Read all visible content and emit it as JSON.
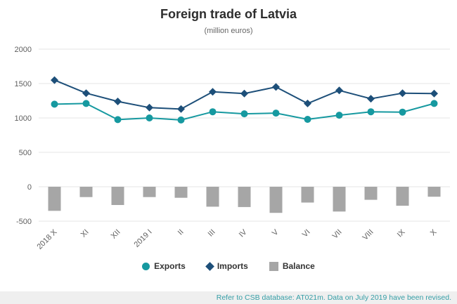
{
  "header": {
    "title": "Foreign trade of Latvia",
    "subtitle": "(million euros)"
  },
  "footer": {
    "note": "Refer to CSB database: AT021m. Data on July 2019 have been revised."
  },
  "legend": {
    "exports": "Exports",
    "imports": "Imports",
    "balance": "Balance"
  },
  "colors": {
    "exports": "#1699a0",
    "imports": "#1d4f79",
    "balance": "#a6a6a6",
    "grid": "#e4e4e4",
    "axis_text": "#5f5f5f",
    "footer_bg": "#efefef",
    "footer_text": "#359ea6"
  },
  "chart_data": {
    "type": "line",
    "title": "Foreign trade of Latvia",
    "subtitle": "(million euros)",
    "categories": [
      "2018 X",
      "XI",
      "XII",
      "2019 I",
      "II",
      "III",
      "IV",
      "V",
      "VI",
      "VII",
      "VIII",
      "IX",
      "X"
    ],
    "series": [
      {
        "name": "Exports",
        "type": "line",
        "marker": "circle",
        "color": "#1699a0",
        "values": [
          1200,
          1210,
          975,
          1000,
          970,
          1090,
          1060,
          1070,
          980,
          1040,
          1090,
          1085,
          1210
        ]
      },
      {
        "name": "Imports",
        "type": "line",
        "marker": "diamond",
        "color": "#1d4f79",
        "values": [
          1550,
          1360,
          1240,
          1150,
          1130,
          1380,
          1355,
          1450,
          1210,
          1400,
          1280,
          1360,
          1355
        ]
      },
      {
        "name": "Balance",
        "type": "bar",
        "color": "#a6a6a6",
        "values": [
          -350,
          -150,
          -265,
          -150,
          -160,
          -290,
          -295,
          -380,
          -230,
          -360,
          -190,
          -275,
          -145
        ]
      }
    ],
    "ylim": [
      -500,
      2000
    ],
    "yticks": [
      -500,
      0,
      500,
      1000,
      1500,
      2000
    ],
    "grid": true,
    "legend_position": "bottom",
    "xlabel": "",
    "ylabel": ""
  }
}
